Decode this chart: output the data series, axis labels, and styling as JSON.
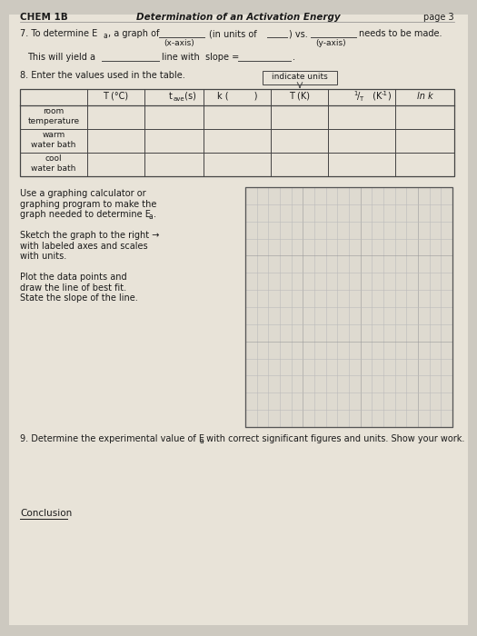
{
  "bg_color": "#cdc9c0",
  "page_title_left": "CHEM 1B",
  "page_title_center": "Determination of an Activation Energy",
  "page_title_right": "page 3",
  "indicate_units": "indicate units",
  "row_labels": [
    "room\ntemperature",
    "warm\nwater bath",
    "cool\nwater bath"
  ],
  "graph_text_lines": [
    "Use a graphing calculator or",
    "graphing program to make the",
    "graph needed to determine E",
    "",
    "Sketch the graph to the right →",
    "with labeled axes and scales",
    "with units.",
    "",
    "Plot the data points and",
    "draw the line of best fit.",
    "State the slope of the line."
  ],
  "q9_text_pre": "9. Determine the experimental value of E",
  "q9_text_post": " with correct significant figures and units. Show your work.",
  "conclusion_text": "Conclusion",
  "grid_cols": 18,
  "grid_rows": 14,
  "paper_color": "#e8e3d8",
  "table_line_color": "#444444",
  "text_color": "#1a1a1a"
}
